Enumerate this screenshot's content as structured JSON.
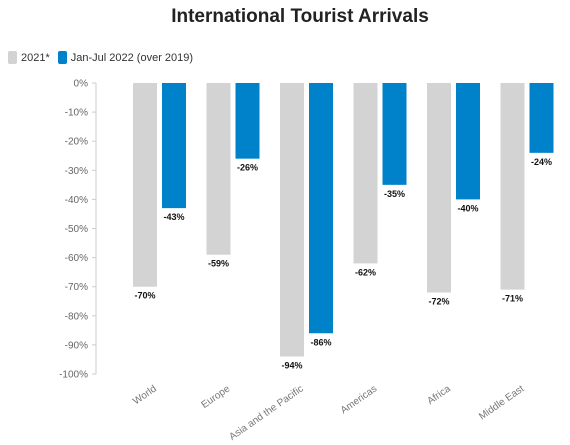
{
  "chart_data": {
    "type": "bar",
    "title": "International Tourist Arrivals",
    "categories": [
      "World",
      "Europe",
      "Asia and the Pacific",
      "Americas",
      "Africa",
      "Middle East"
    ],
    "series": [
      {
        "name": "2021*",
        "values": [
          -70,
          -59,
          -94,
          -62,
          -72,
          -71
        ],
        "color": "#d3d3d3"
      },
      {
        "name": "Jan-Jul 2022 (over 2019)",
        "values": [
          -43,
          -26,
          -86,
          -35,
          -40,
          -24
        ],
        "color": "#0082ca"
      }
    ],
    "ylim": [
      -100,
      0
    ],
    "yticks": [
      "0%",
      "-10%",
      "-20%",
      "-30%",
      "-40%",
      "-50%",
      "-60%",
      "-70%",
      "-80%",
      "-90%",
      "-100%"
    ],
    "data_labels": [
      [
        "-70%",
        "-59%",
        "-94%",
        "-62%",
        "-72%",
        "-71%"
      ],
      [
        "-43%",
        "-26%",
        "-86%",
        "-35%",
        "-40%",
        "-24%"
      ]
    ],
    "legend_position": "top-left",
    "grid": false
  }
}
